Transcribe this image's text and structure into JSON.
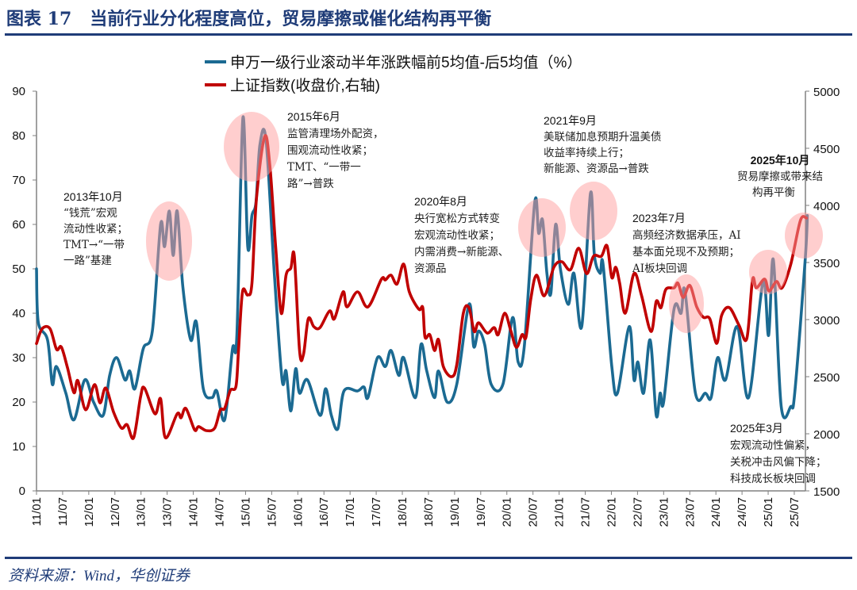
{
  "header": {
    "title": "图表 17   当前行业分化程度高位，贸易摩擦或催化结构再平衡",
    "source": "资料来源：Wind，华创证券"
  },
  "chart_data": {
    "type": "line",
    "title": "",
    "xlabel": "",
    "ylabel_left": "",
    "ylabel_right": "",
    "x_tick_labels": [
      "11/01",
      "11/07",
      "12/01",
      "12/07",
      "13/01",
      "13/07",
      "14/01",
      "14/07",
      "15/01",
      "15/07",
      "16/01",
      "16/07",
      "17/01",
      "17/07",
      "18/01",
      "18/07",
      "19/01",
      "19/07",
      "20/01",
      "20/07",
      "21/01",
      "21/07",
      "22/01",
      "22/07",
      "23/01",
      "23/07",
      "24/01",
      "24/07",
      "25/01",
      "25/07"
    ],
    "y_left": {
      "range": [
        0,
        90
      ],
      "ticks": [
        "0",
        "10",
        "20",
        "30",
        "40",
        "50",
        "60",
        "70",
        "80",
        "90"
      ]
    },
    "y_right": {
      "range": [
        1500,
        5000
      ],
      "ticks": [
        "1500",
        "2000",
        "2500",
        "3000",
        "3500",
        "4000",
        "4500",
        "5000"
      ]
    },
    "legend_placement": "top",
    "colors": {
      "blue": "#1b6a92",
      "red": "#c00000",
      "highlight": "#ff9e9e"
    },
    "series": [
      {
        "name": "申万一级行业滚动半年涨跌幅前5均值-后5均值（%）",
        "axis": "left",
        "color": "#1b6a92",
        "points": [
          [
            "2011-01-01",
            50
          ],
          [
            "2011-01-13",
            38
          ],
          [
            "2011-03-17",
            34
          ],
          [
            "2011-04-20",
            24
          ],
          [
            "2011-05-18",
            28
          ],
          [
            "2011-07-23",
            22
          ],
          [
            "2011-09-19",
            16
          ],
          [
            "2011-12-04",
            25
          ],
          [
            "2012-02-04",
            20
          ],
          [
            "2012-04-10",
            17
          ],
          [
            "2012-05-25",
            26
          ],
          [
            "2012-07-13",
            30
          ],
          [
            "2012-09-10",
            25
          ],
          [
            "2012-10-13",
            27
          ],
          [
            "2012-11-19",
            23
          ],
          [
            "2013-01-16",
            32
          ],
          [
            "2013-03-19",
            36
          ],
          [
            "2013-05-16",
            60
          ],
          [
            "2013-06-13",
            55
          ],
          [
            "2013-07-16",
            63
          ],
          [
            "2013-08-13",
            53
          ],
          [
            "2013-09-10",
            63
          ],
          [
            "2013-10-19",
            46
          ],
          [
            "2013-12-13",
            34
          ],
          [
            "2014-01-22",
            38
          ],
          [
            "2014-03-10",
            23
          ],
          [
            "2014-05-10",
            21
          ],
          [
            "2014-06-13",
            22.5
          ],
          [
            "2014-08-07",
            16
          ],
          [
            "2014-10-01",
            32
          ],
          [
            "2014-11-01",
            35
          ],
          [
            "2014-12-13",
            84
          ],
          [
            "2015-01-16",
            55
          ],
          [
            "2015-02-15",
            62
          ],
          [
            "2015-03-13",
            65
          ],
          [
            "2015-04-10",
            78
          ],
          [
            "2015-05-22",
            79
          ],
          [
            "2015-07-19",
            49
          ],
          [
            "2015-09-13",
            25
          ],
          [
            "2015-10-10",
            27
          ],
          [
            "2015-11-13",
            18
          ],
          [
            "2015-12-16",
            27.5
          ],
          [
            "2016-01-13",
            22
          ],
          [
            "2016-03-07",
            25
          ],
          [
            "2016-06-04",
            17
          ],
          [
            "2016-07-13",
            23
          ],
          [
            "2016-08-22",
            17
          ],
          [
            "2016-10-07",
            14
          ],
          [
            "2016-11-19",
            22.5
          ],
          [
            "2017-02-22",
            22.5
          ],
          [
            "2017-04-07",
            23.4
          ],
          [
            "2017-05-04",
            21
          ],
          [
            "2017-07-10",
            30
          ],
          [
            "2017-09-04",
            28
          ],
          [
            "2017-10-13",
            31.6
          ],
          [
            "2017-12-07",
            26
          ],
          [
            "2018-01-10",
            30
          ],
          [
            "2018-04-01",
            21
          ],
          [
            "2018-05-10",
            33
          ],
          [
            "2018-06-19",
            27
          ],
          [
            "2018-08-13",
            21
          ],
          [
            "2018-09-10",
            27
          ],
          [
            "2018-11-10",
            20
          ],
          [
            "2019-01-16",
            24
          ],
          [
            "2019-04-10",
            42
          ],
          [
            "2019-05-13",
            32.5
          ],
          [
            "2019-06-16",
            36
          ],
          [
            "2019-07-28",
            33
          ],
          [
            "2019-09-13",
            24
          ],
          [
            "2019-12-04",
            24
          ],
          [
            "2020-02-10",
            39
          ],
          [
            "2020-03-19",
            29
          ],
          [
            "2020-05-01",
            32.5
          ],
          [
            "2020-07-13",
            65
          ],
          [
            "2020-08-10",
            58
          ],
          [
            "2020-09-07",
            61
          ],
          [
            "2020-10-07",
            49
          ],
          [
            "2020-11-04",
            44.5
          ],
          [
            "2020-12-07",
            60
          ],
          [
            "2021-01-10",
            50
          ],
          [
            "2021-03-04",
            42
          ],
          [
            "2021-04-13",
            49
          ],
          [
            "2021-06-07",
            37
          ],
          [
            "2021-08-07",
            67
          ],
          [
            "2021-09-04",
            53
          ],
          [
            "2021-10-13",
            49
          ],
          [
            "2021-11-04",
            51
          ],
          [
            "2022-01-04",
            28
          ],
          [
            "2022-02-13",
            22
          ],
          [
            "2022-05-04",
            37
          ],
          [
            "2022-06-07",
            25
          ],
          [
            "2022-07-04",
            29
          ],
          [
            "2022-08-13",
            22
          ],
          [
            "2022-09-28",
            34
          ],
          [
            "2022-11-10",
            17
          ],
          [
            "2022-12-07",
            22
          ],
          [
            "2023-01-01",
            20
          ],
          [
            "2023-03-13",
            41
          ],
          [
            "2023-05-01",
            40
          ],
          [
            "2023-05-28",
            45
          ],
          [
            "2023-08-10",
            22
          ],
          [
            "2023-10-19",
            22
          ],
          [
            "2023-11-28",
            21
          ],
          [
            "2024-01-13",
            30
          ],
          [
            "2024-03-07",
            25
          ],
          [
            "2024-05-28",
            37
          ],
          [
            "2024-08-16",
            21
          ],
          [
            "2024-11-25",
            47
          ],
          [
            "2025-01-04",
            35
          ],
          [
            "2025-02-07",
            52
          ],
          [
            "2025-04-01",
            19
          ],
          [
            "2025-06-07",
            19
          ],
          [
            "2025-07-04",
            22
          ],
          [
            "2025-09-16",
            52
          ],
          [
            "2025-10-01",
            62
          ]
        ]
      },
      {
        "name": "上证指数(收盘价,右轴)",
        "axis": "right",
        "color": "#c00000",
        "points": [
          [
            "2011-01-01",
            2790
          ],
          [
            "2011-02-10",
            2920
          ],
          [
            "2011-04-04",
            2920
          ],
          [
            "2011-05-19",
            2740
          ],
          [
            "2011-06-22",
            2760
          ],
          [
            "2011-08-04",
            2580
          ],
          [
            "2011-09-19",
            2360
          ],
          [
            "2011-10-16",
            2465
          ],
          [
            "2011-12-10",
            2210
          ],
          [
            "2012-02-10",
            2430
          ],
          [
            "2012-03-19",
            2270
          ],
          [
            "2012-04-28",
            2400
          ],
          [
            "2012-06-22",
            2190
          ],
          [
            "2012-08-16",
            2050
          ],
          [
            "2012-09-25",
            2080
          ],
          [
            "2012-11-10",
            1965
          ],
          [
            "2012-12-28",
            2326
          ],
          [
            "2013-01-25",
            2400
          ],
          [
            "2013-04-07",
            2175
          ],
          [
            "2013-05-16",
            2306
          ],
          [
            "2013-06-19",
            1965
          ],
          [
            "2013-09-10",
            2175
          ],
          [
            "2013-10-07",
            2140
          ],
          [
            "2013-11-10",
            2222
          ],
          [
            "2014-01-10",
            2035
          ],
          [
            "2014-02-07",
            2063
          ],
          [
            "2014-04-01",
            2028
          ],
          [
            "2014-05-28",
            2049
          ],
          [
            "2014-07-07",
            2208
          ],
          [
            "2014-08-07",
            2222
          ],
          [
            "2014-09-16",
            2380
          ],
          [
            "2014-10-25",
            2417
          ],
          [
            "2014-11-13",
            2743
          ],
          [
            "2014-12-10",
            3243
          ],
          [
            "2015-01-16",
            3215
          ],
          [
            "2015-02-15",
            3319
          ],
          [
            "2015-03-16",
            4062
          ],
          [
            "2015-05-13",
            4604
          ],
          [
            "2015-06-19",
            4340
          ],
          [
            "2015-07-28",
            3646
          ],
          [
            "2015-09-07",
            3056
          ],
          [
            "2015-10-10",
            3389
          ],
          [
            "2015-11-13",
            3451
          ],
          [
            "2015-12-07",
            3555
          ],
          [
            "2016-01-13",
            2729
          ],
          [
            "2016-02-10",
            2694
          ],
          [
            "2016-03-13",
            3007
          ],
          [
            "2016-04-22",
            2937
          ],
          [
            "2016-06-04",
            2930
          ],
          [
            "2016-08-10",
            3076
          ],
          [
            "2016-09-13",
            3007
          ],
          [
            "2016-11-13",
            3243
          ],
          [
            "2016-12-10",
            3111
          ],
          [
            "2017-02-22",
            3243
          ],
          [
            "2017-05-04",
            3111
          ],
          [
            "2017-08-07",
            3354
          ],
          [
            "2017-09-04",
            3347
          ],
          [
            "2017-10-13",
            3389
          ],
          [
            "2017-11-25",
            3312
          ],
          [
            "2018-01-10",
            3486
          ],
          [
            "2018-02-19",
            3243
          ],
          [
            "2018-04-25",
            3090
          ],
          [
            "2018-05-22",
            3104
          ],
          [
            "2018-06-07",
            2847
          ],
          [
            "2018-07-10",
            2868
          ],
          [
            "2018-08-13",
            2729
          ],
          [
            "2018-09-10",
            2826
          ],
          [
            "2018-10-13",
            2590
          ],
          [
            "2018-12-10",
            2500
          ],
          [
            "2019-01-16",
            2604
          ],
          [
            "2019-03-01",
            3056
          ],
          [
            "2019-04-10",
            3104
          ],
          [
            "2019-05-16",
            2896
          ],
          [
            "2019-06-16",
            2972
          ],
          [
            "2019-08-16",
            2882
          ],
          [
            "2019-10-04",
            2930
          ],
          [
            "2019-11-01",
            2868
          ],
          [
            "2019-12-16",
            3056
          ],
          [
            "2020-01-28",
            2903
          ],
          [
            "2020-03-07",
            2757
          ],
          [
            "2020-04-16",
            2868
          ],
          [
            "2020-05-13",
            2847
          ],
          [
            "2020-06-16",
            3180
          ],
          [
            "2020-07-25",
            3389
          ],
          [
            "2020-09-19",
            3208
          ],
          [
            "2020-11-25",
            3458
          ],
          [
            "2021-01-19",
            3507
          ],
          [
            "2021-03-19",
            3437
          ],
          [
            "2021-05-16",
            3625
          ],
          [
            "2021-07-10",
            3403
          ],
          [
            "2021-08-28",
            3555
          ],
          [
            "2021-10-22",
            3555
          ],
          [
            "2021-12-01",
            3646
          ],
          [
            "2022-01-04",
            3368
          ],
          [
            "2022-02-01",
            3458
          ],
          [
            "2022-02-28",
            3319
          ],
          [
            "2022-04-07",
            3056
          ],
          [
            "2022-06-07",
            3403
          ],
          [
            "2022-07-28",
            3215
          ],
          [
            "2022-10-04",
            2896
          ],
          [
            "2022-11-10",
            3160
          ],
          [
            "2022-12-13",
            3104
          ],
          [
            "2023-01-16",
            3264
          ],
          [
            "2023-03-13",
            3278
          ],
          [
            "2023-04-10",
            3319
          ],
          [
            "2023-05-16",
            3194
          ],
          [
            "2023-07-01",
            3299
          ],
          [
            "2023-08-19",
            3111
          ],
          [
            "2023-10-04",
            3021
          ],
          [
            "2023-11-19",
            3007
          ],
          [
            "2024-01-07",
            2792
          ],
          [
            "2024-02-10",
            3035
          ],
          [
            "2024-04-04",
            3104
          ],
          [
            "2024-06-10",
            2951
          ],
          [
            "2024-08-04",
            2833
          ],
          [
            "2024-09-13",
            3347
          ],
          [
            "2024-10-10",
            3278
          ],
          [
            "2024-12-07",
            3354
          ],
          [
            "2025-01-07",
            3250
          ],
          [
            "2025-02-28",
            3333
          ],
          [
            "2025-04-07",
            3278
          ],
          [
            "2025-06-07",
            3486
          ],
          [
            "2025-08-13",
            3868
          ],
          [
            "2025-09-25",
            3889
          ]
        ]
      }
    ],
    "annotations": [
      {
        "id": "2013-10",
        "lines": [
          "2013年10月",
          "“钱荒”宏观",
          "流动性收紧；",
          "TMT→“一带",
          "一路”基建"
        ]
      },
      {
        "id": "2015-06",
        "lines": [
          "2015年6月",
          "监管清理场外配资，",
          "围观流动性收紧；",
          "TMT、“一带一",
          "路”→普跌"
        ]
      },
      {
        "id": "2020-08",
        "lines": [
          "2020年8月",
          "央行宽松方式转变",
          "宏观流动性收紧；",
          "内需消费→新能源、",
          "资源品"
        ]
      },
      {
        "id": "2021-09",
        "lines": [
          "2021年9月",
          "美联储加息预期升温美债",
          "收益率持续上行；",
          "新能源、资源品→普跌"
        ]
      },
      {
        "id": "2023-07",
        "lines": [
          "2023年7月",
          "高频经济数据承压，AI",
          "基本面兑现不及预期；",
          "AI板块回调"
        ]
      },
      {
        "id": "2025-10",
        "lines": [
          "2025年10月",
          "贸易摩擦或带来结",
          "构再平衡"
        ]
      },
      {
        "id": "2025-03",
        "lines": [
          "2025年3月",
          "宏观流动性偏紧，",
          "关税冲击风偏下降；",
          "科技成长板块回调"
        ]
      }
    ]
  }
}
